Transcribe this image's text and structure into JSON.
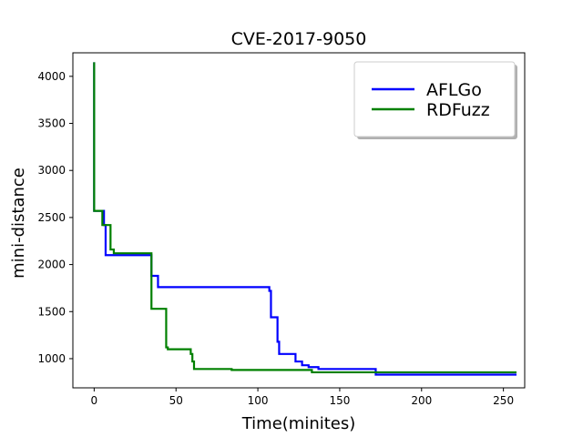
{
  "chart_data": {
    "type": "line",
    "title": "CVE-2017-9050",
    "xlabel": "Time(minites)",
    "ylabel": "mini-distance",
    "xlim": [
      -13,
      263
    ],
    "ylim": [
      690,
      4250
    ],
    "xticks": [
      0,
      50,
      100,
      150,
      200,
      250
    ],
    "yticks": [
      1000,
      1500,
      2000,
      2500,
      3000,
      3500,
      4000
    ],
    "grid": false,
    "legend_position": "top-right",
    "series": [
      {
        "name": "AFLGo",
        "color": "#0000ff",
        "points": [
          [
            0,
            4150
          ],
          [
            0,
            2570
          ],
          [
            6,
            2570
          ],
          [
            6,
            2420
          ],
          [
            7,
            2420
          ],
          [
            7,
            2100
          ],
          [
            35,
            2100
          ],
          [
            35,
            1880
          ],
          [
            39,
            1880
          ],
          [
            39,
            1760
          ],
          [
            107,
            1760
          ],
          [
            107,
            1720
          ],
          [
            108,
            1720
          ],
          [
            108,
            1440
          ],
          [
            112,
            1440
          ],
          [
            112,
            1180
          ],
          [
            113,
            1180
          ],
          [
            113,
            1050
          ],
          [
            123,
            1050
          ],
          [
            123,
            970
          ],
          [
            127,
            970
          ],
          [
            127,
            930
          ],
          [
            131,
            930
          ],
          [
            131,
            910
          ],
          [
            137,
            910
          ],
          [
            137,
            890
          ],
          [
            172,
            890
          ],
          [
            172,
            830
          ],
          [
            258,
            830
          ]
        ]
      },
      {
        "name": "RDFuzz",
        "color": "#008000",
        "points": [
          [
            0,
            4150
          ],
          [
            0,
            2570
          ],
          [
            5,
            2570
          ],
          [
            5,
            2420
          ],
          [
            10,
            2420
          ],
          [
            10,
            2160
          ],
          [
            12,
            2160
          ],
          [
            12,
            2120
          ],
          [
            35,
            2120
          ],
          [
            35,
            1530
          ],
          [
            44,
            1530
          ],
          [
            44,
            1120
          ],
          [
            45,
            1120
          ],
          [
            45,
            1100
          ],
          [
            59,
            1100
          ],
          [
            59,
            1050
          ],
          [
            60,
            1050
          ],
          [
            60,
            970
          ],
          [
            61,
            970
          ],
          [
            61,
            890
          ],
          [
            84,
            890
          ],
          [
            84,
            880
          ],
          [
            133,
            880
          ],
          [
            133,
            855
          ],
          [
            258,
            855
          ]
        ]
      }
    ]
  }
}
